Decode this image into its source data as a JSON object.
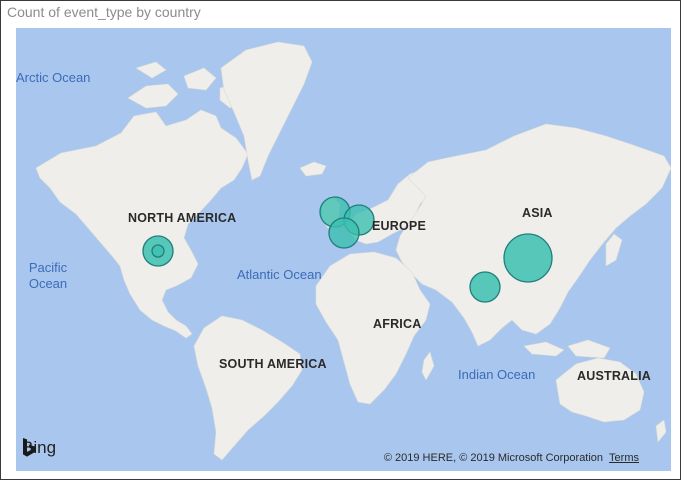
{
  "visual": {
    "title": "Count of event_type by country",
    "map": {
      "ocean_labels": [
        "Arctic Ocean",
        "Pacific Ocean",
        "Atlantic Ocean",
        "Indian Ocean"
      ],
      "continent_labels": [
        "NORTH AMERICA",
        "SOUTH AMERICA",
        "EUROPE",
        "AFRICA",
        "ASIA",
        "AUSTRALIA"
      ],
      "bubble_fill": "#3cbfb0",
      "bubble_stroke": "#1f7f7a",
      "bubbles": [
        {
          "name": "United States",
          "lon": -98,
          "lat": 39,
          "size": "medium"
        },
        {
          "name": "United States (inner)",
          "lon": -98,
          "lat": 39,
          "size": "small"
        },
        {
          "name": "United Kingdom",
          "lon": -2,
          "lat": 54,
          "size": "medium"
        },
        {
          "name": "France",
          "lon": 2,
          "lat": 46,
          "size": "medium"
        },
        {
          "name": "Germany",
          "lon": 11,
          "lat": 51,
          "size": "medium"
        },
        {
          "name": "India",
          "lon": 79,
          "lat": 22,
          "size": "medium"
        },
        {
          "name": "China",
          "lon": 104,
          "lat": 35,
          "size": "large"
        }
      ],
      "ocean_color": "#a9c7ee",
      "land_color": "#efeeea"
    },
    "provider": "Bing",
    "attribution": "© 2019 HERE, © 2019 Microsoft Corporation",
    "terms_label": "Terms"
  }
}
